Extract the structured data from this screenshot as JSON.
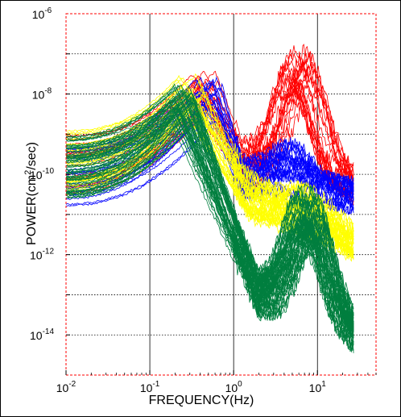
{
  "chart_data": {
    "type": "line",
    "title": "",
    "xlabel": "FREQUENCY(Hz)",
    "ylabel_parts": [
      "POWER(cm",
      "2",
      "/sec)"
    ],
    "xscale": "log",
    "yscale": "log",
    "xlim": [
      0.01,
      50
    ],
    "ylim": [
      1e-15,
      1e-06
    ],
    "x_tick_labels": [
      {
        "base": "10",
        "exp": "-2",
        "value": 0.01
      },
      {
        "base": "10",
        "exp": "-1",
        "value": 0.1
      },
      {
        "base": "10",
        "exp": "0",
        "value": 1
      },
      {
        "base": "10",
        "exp": "1",
        "value": 10
      }
    ],
    "y_tick_labels": [
      {
        "base": "10",
        "exp": "-14",
        "value": 1e-14
      },
      {
        "base": "10",
        "exp": "-12",
        "value": 1e-12
      },
      {
        "base": "10",
        "exp": "-10",
        "value": 1e-10
      },
      {
        "base": "10",
        "exp": "-8",
        "value": 1e-08
      },
      {
        "base": "10",
        "exp": "-6",
        "value": 1e-06
      }
    ],
    "grid": true,
    "colors": {
      "red": "#ff0000",
      "blue": "#0000ff",
      "yellow": "#ffff00",
      "green": "#007f3f"
    },
    "series_groups": [
      {
        "color": "red",
        "count": 22,
        "low_level": 1.5e-10,
        "peak_freq": 0.45,
        "peak_level": 1.2e-08,
        "dip_freq": 1.3,
        "dip_level": 1.5e-10,
        "high_peak_freq": 6.0,
        "high_peak_level": 5e-08,
        "end_level": 5e-11
      },
      {
        "color": "blue",
        "count": 22,
        "low_level": 1e-10,
        "peak_freq": 0.5,
        "peak_level": 1e-08,
        "dip_freq": 1.3,
        "dip_level": 8e-11,
        "high_peak_freq": 5.0,
        "high_peak_level": 2e-10,
        "end_level": 3e-11
      },
      {
        "color": "yellow",
        "count": 30,
        "low_level": 2e-10,
        "peak_freq": 0.3,
        "peak_level": 1e-08,
        "dip_freq": 1.5,
        "dip_level": 3e-11,
        "high_peak_freq": 8.0,
        "high_peak_level": 5e-11,
        "end_level": 2e-12
      },
      {
        "color": "green",
        "count": 60,
        "low_level": 1.5e-10,
        "peak_freq": 0.25,
        "peak_level": 6e-09,
        "dip_freq": 2.0,
        "dip_level": 1e-13,
        "high_peak_freq": 8.0,
        "high_peak_level": 3e-11,
        "end_level": 1e-14
      }
    ]
  }
}
